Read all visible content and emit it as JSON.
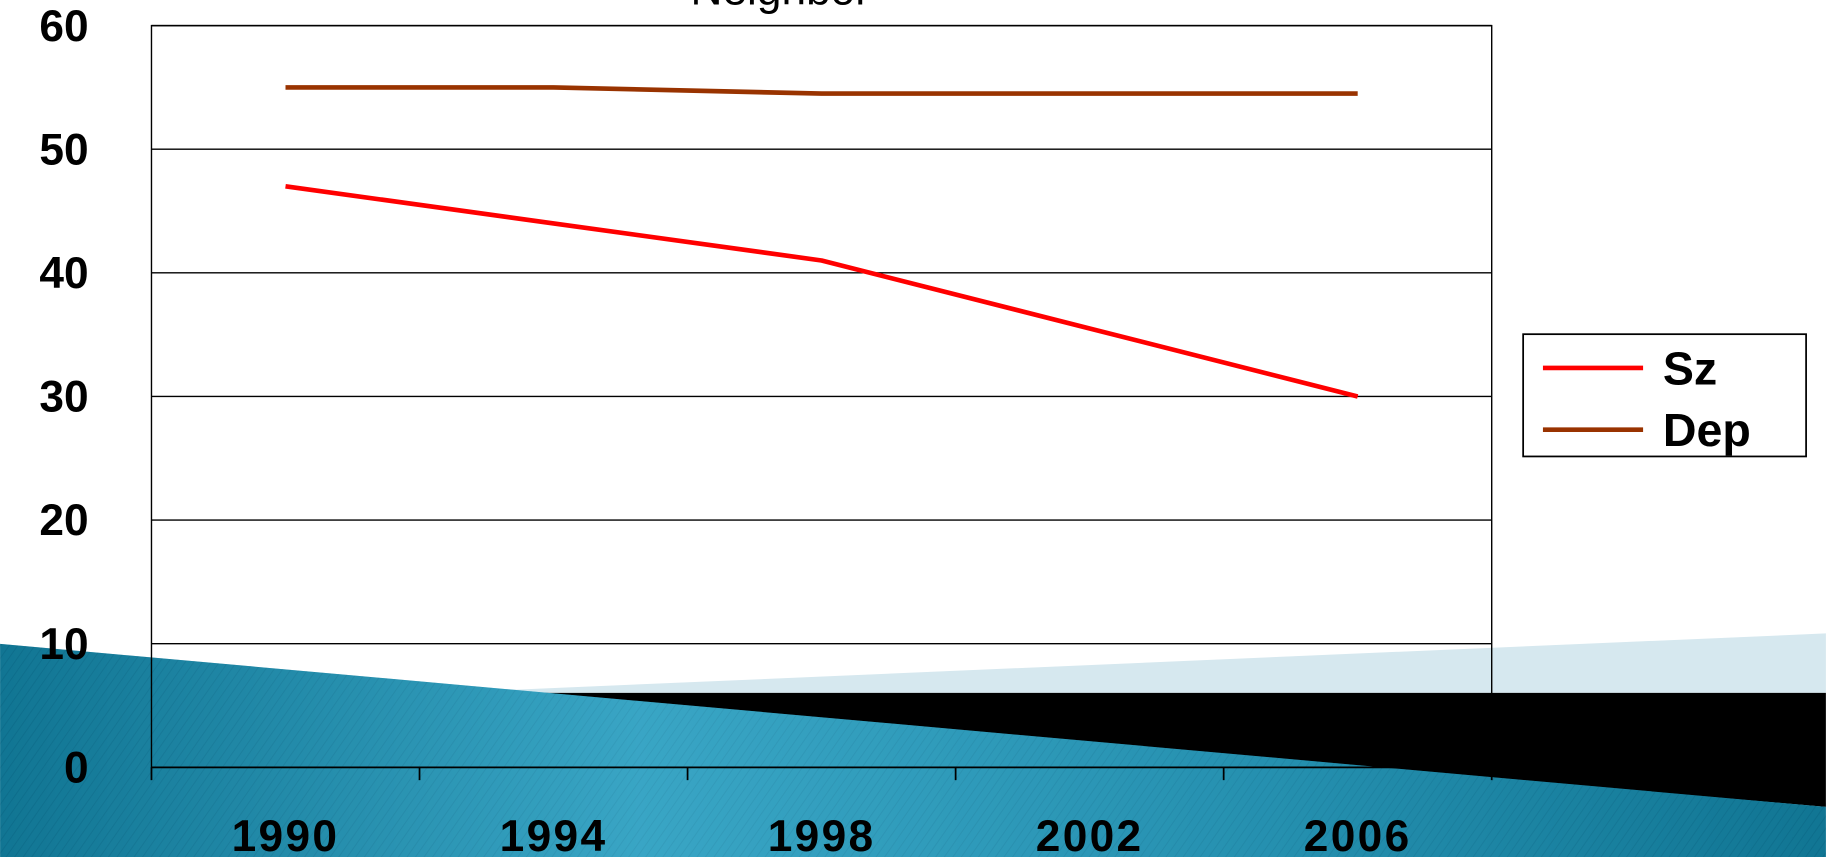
{
  "chart_data": {
    "type": "line",
    "title": "Neighbor",
    "categories": [
      "1990",
      "1994",
      "1998",
      "2002",
      "2006"
    ],
    "series": [
      {
        "name": "Sz",
        "color": "#ff0000",
        "values": [
          47,
          44,
          41,
          35.5,
          30
        ]
      },
      {
        "name": "Dep",
        "color": "#993300",
        "values": [
          55,
          55,
          54.5,
          54.5,
          54.5
        ]
      }
    ],
    "ylim": [
      0,
      60
    ],
    "yticks": [
      0,
      10,
      20,
      30,
      40,
      50,
      60
    ],
    "grid": true,
    "legend": "right"
  }
}
